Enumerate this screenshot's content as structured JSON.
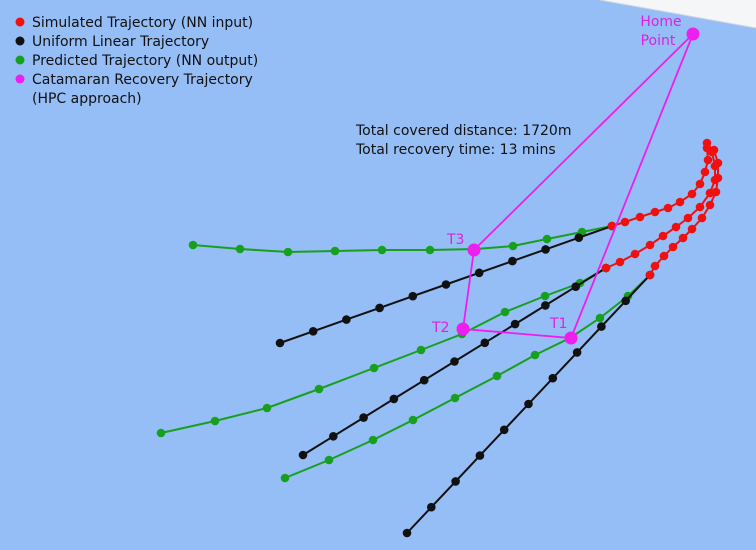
{
  "legend": [
    {
      "label": [
        "Simulated Trajectory (NN input)"
      ]
    },
    {
      "label": [
        "Uniform Linear Trajectory"
      ]
    },
    {
      "label": [
        "Predicted Trajectory (NN output)"
      ]
    },
    {
      "label": [
        "Catamaran Recovery Trajectory",
        "(HPC approach)"
      ]
    }
  ],
  "annotations": [
    "Total covered distance: 1720m",
    "Total recovery time: 13 mins"
  ],
  "points": {
    "home": [
      "Home",
      "Point"
    ],
    "t1": "T1",
    "t2": "T2",
    "t3": "T3"
  }
}
